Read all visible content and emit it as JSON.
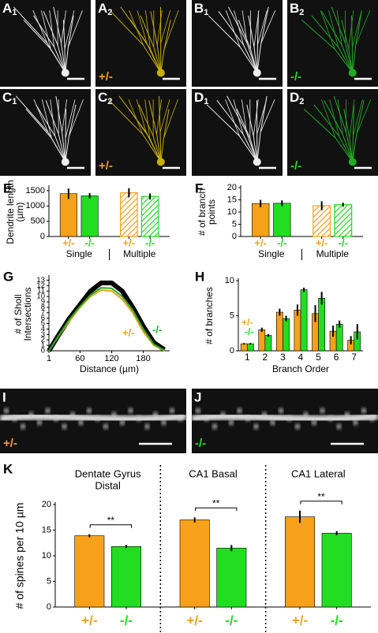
{
  "images": [
    {
      "letter": "A",
      "sub": "1"
    },
    {
      "letter": "A",
      "sub": "2",
      "genotype": "+/-",
      "genotype_color": "#f7a11a"
    },
    {
      "letter": "B",
      "sub": "1"
    },
    {
      "letter": "B",
      "sub": "2",
      "genotype": "-/-",
      "genotype_color": "#22dd22"
    },
    {
      "letter": "C",
      "sub": "1"
    },
    {
      "letter": "C",
      "sub": "2",
      "genotype": "+/-",
      "genotype_color": "#f7a11a"
    },
    {
      "letter": "D",
      "sub": "1"
    },
    {
      "letter": "D",
      "sub": "2",
      "genotype": "-/-",
      "genotype_color": "#22dd22"
    }
  ],
  "spine_images": [
    {
      "letter": "I",
      "genotype": "+/-",
      "genotype_color": "#f7a11a"
    },
    {
      "letter": "J",
      "genotype": "-/-",
      "genotype_color": "#22dd22"
    }
  ],
  "chart_data": [
    {
      "type": "bar",
      "label": "E",
      "ylabel_lines": [
        "Dendrite length",
        "(µm)"
      ],
      "categories": [
        "Single",
        "Multiple"
      ],
      "hatch": [
        false,
        true
      ],
      "bar_labels": true,
      "category_labels_position": "bottom",
      "group_divider": true,
      "series": [
        {
          "name": "+/-",
          "color": "#f7a11a",
          "values": [
            1400,
            1430
          ],
          "errors": [
            170,
            150
          ]
        },
        {
          "name": "-/-",
          "color": "#22dd22",
          "values": [
            1330,
            1310
          ],
          "errors": [
            90,
            100
          ]
        }
      ],
      "ylim": [
        0,
        1600
      ],
      "yticks": [
        0,
        500,
        1000,
        1500
      ]
    },
    {
      "type": "bar",
      "label": "F",
      "ylabel_lines": [
        "# of branch",
        "points"
      ],
      "categories": [
        "Single",
        "Multiple"
      ],
      "hatch": [
        false,
        true
      ],
      "bar_labels": true,
      "category_labels_position": "bottom",
      "group_divider": true,
      "series": [
        {
          "name": "+/-",
          "color": "#f7a11a",
          "values": [
            13.5,
            12.6
          ],
          "errors": [
            1.5,
            1.8
          ]
        },
        {
          "name": "-/-",
          "color": "#22dd22",
          "values": [
            13.6,
            13.0
          ],
          "errors": [
            1.2,
            0.8
          ]
        }
      ],
      "ylim": [
        0,
        20
      ],
      "yticks": [
        0,
        5,
        10,
        15,
        20
      ]
    },
    {
      "type": "line",
      "label": "G",
      "ylabel_lines": [
        "# of Sholl",
        "Intersections"
      ],
      "xlabel": "Distance (µm)",
      "legend": "lower right",
      "x": [
        1,
        20,
        40,
        60,
        80,
        100,
        120,
        140,
        160,
        180,
        200,
        220
      ],
      "series": [
        {
          "color": "#000000",
          "width": 6,
          "values": [
            0,
            3,
            6,
            8.5,
            11,
            12.5,
            12.5,
            11,
            8,
            4.5,
            1.5,
            0.2
          ]
        },
        {
          "name": "+/-",
          "color": "#f7a11a",
          "width": 2,
          "values": [
            0,
            2.8,
            5.5,
            8,
            10,
            11.2,
            11,
            9.5,
            7,
            3.5,
            1,
            0
          ]
        },
        {
          "name": "-/-",
          "color": "#22aa22",
          "width": 2,
          "values": [
            0,
            2.9,
            5.8,
            8.2,
            10.3,
            11.6,
            11.5,
            10,
            7.5,
            4,
            1.2,
            0.1
          ]
        }
      ],
      "xlim": [
        1,
        230
      ],
      "xticks": [
        1,
        60,
        120,
        180
      ],
      "ylim": [
        0,
        13.5
      ],
      "yticks": [
        0,
        1,
        2,
        3,
        4,
        5,
        6,
        7,
        8,
        9,
        10,
        11,
        12,
        13
      ]
    },
    {
      "type": "bar",
      "label": "H",
      "ylabel_lines": [
        "# of branches"
      ],
      "xlabel": "Branch Order",
      "legend": "upper left",
      "bar_labels": false,
      "category_labels_position": "bottom",
      "categories": [
        "1",
        "2",
        "3",
        "4",
        "5",
        "6",
        "7"
      ],
      "series": [
        {
          "name": "+/-",
          "color": "#f7a11a",
          "values": [
            1,
            3,
            5.5,
            5.8,
            5.3,
            2.8,
            1.5
          ],
          "errors": [
            0.1,
            0.3,
            0.5,
            0.8,
            1.2,
            0.8,
            0.6
          ]
        },
        {
          "name": "-/-",
          "color": "#22dd22",
          "values": [
            1,
            2.2,
            4.6,
            8.7,
            7.5,
            3.8,
            2.7
          ],
          "errors": [
            0.1,
            0.2,
            0.4,
            0.3,
            0.9,
            0.5,
            1.1
          ]
        }
      ],
      "ylim": [
        0,
        10
      ],
      "yticks": [
        0,
        5,
        10
      ]
    },
    {
      "type": "bar",
      "label": "K",
      "ylabel_lines": [
        "# of spines per 10 µm"
      ],
      "bar_labels": true,
      "category_labels_position": "top",
      "separators": true,
      "category_lines": [
        [
          "Dentate Gyrus",
          "Distal"
        ],
        [
          "CA1 Basal"
        ],
        [
          "CA1 Lateral"
        ]
      ],
      "annotations": [
        "**",
        "**",
        "**"
      ],
      "series": [
        {
          "name": "+/-",
          "color": "#f7a11a",
          "values": [
            13.9,
            17,
            17.6
          ],
          "errors": [
            0.3,
            0.5,
            1.2
          ]
        },
        {
          "name": "-/-",
          "color": "#22dd22",
          "values": [
            11.8,
            11.5,
            14.4
          ],
          "errors": [
            0.3,
            0.6,
            0.4
          ]
        }
      ],
      "ylim": [
        0,
        20
      ],
      "yticks": [
        0,
        5,
        10,
        15,
        20
      ]
    }
  ]
}
